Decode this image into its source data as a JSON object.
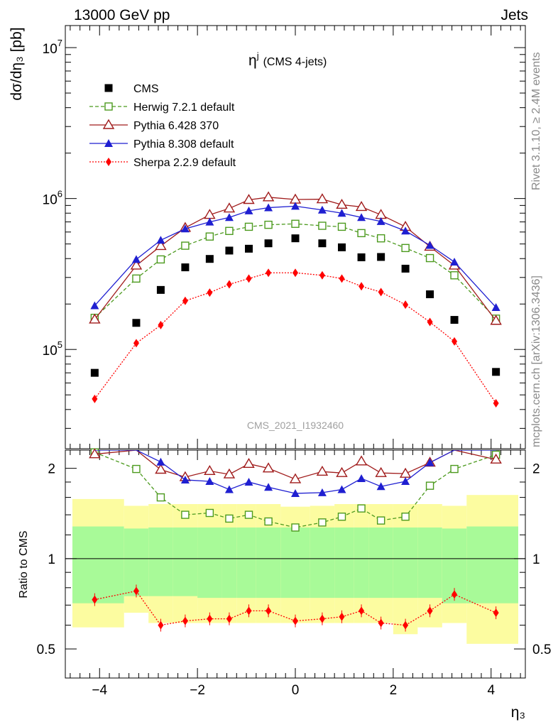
{
  "header": {
    "left": "13000 GeV pp",
    "right": "Jets",
    "side_top": "Rivet 3.1.10, ≥ 2.4M events",
    "side_bottom": "mcplots.cern.ch [arXiv:1306.3436]",
    "watermark": "CMS_2021_I1932460"
  },
  "chart_data": {
    "type": "scatter",
    "title_main": "η",
    "title_sup": "j",
    "title_suffix": "(CMS 4-jets)",
    "ylabel": "dσ/dη₃ [pb]",
    "xlabel": "η₃",
    "ratio_ylabel": "Ratio to CMS",
    "y_scale": "log",
    "ylim": [
      22000,
      14000000
    ],
    "xlim": [
      -4.7,
      4.7
    ],
    "ratio_ylim": [
      0.4,
      2.3
    ],
    "x_ticks": [
      -4,
      -2,
      0,
      2,
      4
    ],
    "x_tick_labels": [
      "−4",
      "−2",
      "0",
      "2",
      "4"
    ],
    "y_tick_labels": [
      {
        "base": "10",
        "exp": "5",
        "value": 100000
      },
      {
        "base": "10",
        "exp": "6",
        "value": 1000000
      },
      {
        "base": "10",
        "exp": "7",
        "value": 10000000
      }
    ],
    "ratio_ticks": [
      {
        "label": "0.5",
        "value": 0.5
      },
      {
        "label": "1",
        "value": 1
      },
      {
        "label": "2",
        "value": 2
      }
    ],
    "x": [
      -4.1,
      -3.25,
      -2.75,
      -2.25,
      -1.75,
      -1.35,
      -0.95,
      -0.55,
      0,
      0.55,
      0.95,
      1.35,
      1.75,
      2.25,
      2.75,
      3.25,
      4.1
    ],
    "bin_edges": [
      -4.7,
      -3.5,
      -3.0,
      -2.5,
      -2.0,
      -1.5,
      -1.2,
      -0.8,
      -0.3,
      0.3,
      0.8,
      1.2,
      1.5,
      2.0,
      2.5,
      3.0,
      3.5,
      4.7
    ],
    "series": [
      {
        "name": "CMS",
        "color": "#000000",
        "marker": "square-filled",
        "line": "none",
        "values": [
          70000,
          150000,
          248000,
          350000,
          398000,
          452000,
          465000,
          505000,
          545000,
          505000,
          475000,
          408000,
          410000,
          343000,
          232000,
          157000,
          71000
        ]
      },
      {
        "name": "Herwig 7.2.1 default",
        "color": "#4c9a1e",
        "marker": "square-open",
        "line": "dashed",
        "values": [
          162000,
          295000,
          395000,
          487000,
          560000,
          610000,
          650000,
          670000,
          680000,
          660000,
          650000,
          590000,
          545000,
          470000,
          403000,
          310000,
          160000
        ],
        "ratio": [
          2.26,
          1.99,
          1.6,
          1.4,
          1.42,
          1.36,
          1.4,
          1.33,
          1.27,
          1.32,
          1.38,
          1.47,
          1.34,
          1.38,
          1.75,
          1.99,
          2.22
        ]
      },
      {
        "name": "Pythia 6.428 370",
        "color": "#a01b1b",
        "marker": "triangle-open",
        "line": "solid",
        "values": [
          158000,
          360000,
          485000,
          640000,
          780000,
          860000,
          980000,
          1020000,
          985000,
          990000,
          910000,
          880000,
          780000,
          650000,
          480000,
          360000,
          155000
        ],
        "ratio": [
          2.23,
          2.38,
          1.98,
          1.87,
          1.96,
          1.91,
          2.07,
          2.0,
          1.84,
          1.95,
          1.93,
          2.11,
          1.93,
          1.92,
          2.09,
          2.32,
          2.14
        ]
      },
      {
        "name": "Pythia 8.308 default",
        "color": "#1f1fd1",
        "marker": "triangle-filled",
        "line": "solid",
        "values": [
          195000,
          395000,
          530000,
          630000,
          700000,
          750000,
          830000,
          870000,
          890000,
          840000,
          800000,
          750000,
          705000,
          610000,
          490000,
          380000,
          190000
        ],
        "ratio": [
          2.6,
          2.55,
          2.1,
          1.83,
          1.81,
          1.7,
          1.8,
          1.73,
          1.65,
          1.66,
          1.7,
          1.85,
          1.74,
          1.81,
          2.09,
          2.4,
          2.55
        ]
      },
      {
        "name": "Sherpa 2.2.9 default",
        "color": "#ff0000",
        "marker": "diamond-filled",
        "line": "dotted",
        "values": [
          47000,
          110000,
          145000,
          210000,
          238000,
          270000,
          295000,
          322000,
          322000,
          310000,
          295000,
          262000,
          240000,
          198000,
          152000,
          113000,
          44000
        ],
        "ratio": [
          0.73,
          0.78,
          0.6,
          0.62,
          0.63,
          0.63,
          0.67,
          0.67,
          0.62,
          0.63,
          0.64,
          0.67,
          0.61,
          0.6,
          0.67,
          0.76,
          0.66
        ]
      }
    ],
    "uncertainty_bands": {
      "stat_color": "#a8fa98",
      "total_color": "#fcfca0",
      "stat_low": [
        0.71,
        0.75,
        0.75,
        0.75,
        0.74,
        0.74,
        0.74,
        0.74,
        0.74,
        0.74,
        0.74,
        0.74,
        0.74,
        0.74,
        0.74,
        0.71,
        0.71
      ],
      "stat_high": [
        1.28,
        1.26,
        1.27,
        1.27,
        1.27,
        1.27,
        1.27,
        1.27,
        1.27,
        1.27,
        1.27,
        1.27,
        1.27,
        1.27,
        1.27,
        1.26,
        1.28
      ],
      "total_low": [
        0.59,
        0.66,
        0.61,
        0.61,
        0.61,
        0.61,
        0.61,
        0.61,
        0.61,
        0.61,
        0.61,
        0.61,
        0.61,
        0.56,
        0.59,
        0.61,
        0.52
      ],
      "total_high": [
        1.58,
        1.5,
        1.52,
        1.52,
        1.52,
        1.52,
        1.52,
        1.52,
        1.49,
        1.5,
        1.52,
        1.52,
        1.52,
        1.52,
        1.52,
        1.5,
        1.63
      ]
    }
  }
}
